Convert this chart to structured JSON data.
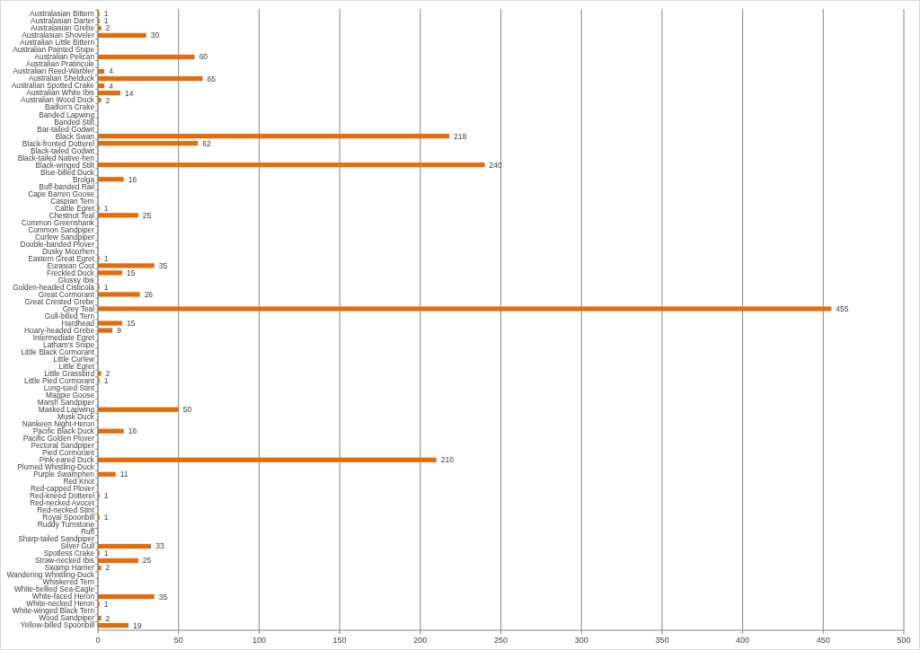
{
  "chart_data": {
    "type": "bar",
    "orientation": "horizontal",
    "color": "#e46c0a",
    "data_labels": true,
    "grid": "x",
    "xlim": [
      0,
      500
    ],
    "xticks": [
      0,
      50,
      100,
      150,
      200,
      250,
      300,
      350,
      400,
      450,
      500
    ],
    "categories": [
      "Australasian Bittern",
      "Australasian Darter",
      "Australasian Grebe",
      "Australasian Shoveler",
      "Australian Little Bittern",
      "Australian Painted Snipe",
      "Australian Pelican",
      "Australian Pratincole",
      "Australian Reed-Warbler",
      "Australian Shelduck",
      "Australian Spotted Crake",
      "Australian White Ibis",
      "Australian Wood Duck",
      "Baillon's Crake",
      "Banded Lapwing",
      "Banded Stilt",
      "Bar-tailed Godwit",
      "Black Swan",
      "Black-fronted Dotterel",
      "Black-tailed Godwit",
      "Black-tailed Native-hen",
      "Black-winged Stilt",
      "Blue-billed Duck",
      "Brolga",
      "Buff-banded Rail",
      "Cape Barren Goose",
      "Caspian Tern",
      "Cattle Egret",
      "Chestnut Teal",
      "Common Greenshank",
      "Common Sandpiper",
      "Curlew Sandpiper",
      "Double-banded Plover",
      "Dusky Moorhen",
      "Eastern Great Egret",
      "Eurasian Coot",
      "Freckled Duck",
      "Glossy Ibis",
      "Golden-headed Cisticola",
      "Great Cormorant",
      "Great Crested Grebe",
      "Grey Teal",
      "Gull-billed Tern",
      "Hardhead",
      "Hoary-headed Grebe",
      "Intermediate Egret",
      "Latham's Snipe",
      "Little Black Cormorant",
      "Little Curlew",
      "Little Egret",
      "Little Grassbird",
      "Little Pied Cormorant",
      "Long-toed Stint",
      "Magpie Goose",
      "Marsh Sandpiper",
      "Masked Lapwing",
      "Musk Duck",
      "Nankeen Night-Heron",
      "Pacific Black Duck",
      "Pacific Golden Plover",
      "Pectoral Sandpiper",
      "Pied Cormorant",
      "Pink-eared Duck",
      "Plumed Whistling-Duck",
      "Purple Swamphen",
      "Red Knot",
      "Red-capped Plover",
      "Red-kneed Dotterel",
      "Red-necked Avocet",
      "Red-necked Stint",
      "Royal Spoonbill",
      "Ruddy Turnstone",
      "Ruff",
      "Sharp-tailed Sandpiper",
      "Silver Gull",
      "Spotless Crake",
      "Straw-necked Ibis",
      "Swamp Harrier",
      "Wandering Whistling-Duck",
      "Whiskered Tern",
      "White-bellied Sea-Eagle",
      "White-faced Heron",
      "White-necked Heron",
      "White-winged Black Tern",
      "Wood Sandpiper",
      "Yellow-billed Spoonbill"
    ],
    "values": [
      1,
      1,
      2,
      30,
      null,
      null,
      60,
      null,
      4,
      65,
      4,
      14,
      2,
      null,
      null,
      null,
      null,
      218,
      62,
      null,
      null,
      240,
      null,
      16,
      null,
      null,
      null,
      1,
      25,
      null,
      null,
      null,
      null,
      null,
      1,
      35,
      15,
      null,
      1,
      26,
      null,
      455,
      null,
      15,
      9,
      null,
      null,
      null,
      null,
      null,
      2,
      1,
      null,
      null,
      null,
      50,
      null,
      null,
      16,
      null,
      null,
      null,
      210,
      null,
      11,
      null,
      null,
      1,
      null,
      null,
      1,
      null,
      null,
      null,
      33,
      1,
      25,
      2,
      null,
      null,
      null,
      35,
      1,
      null,
      2,
      19
    ]
  }
}
